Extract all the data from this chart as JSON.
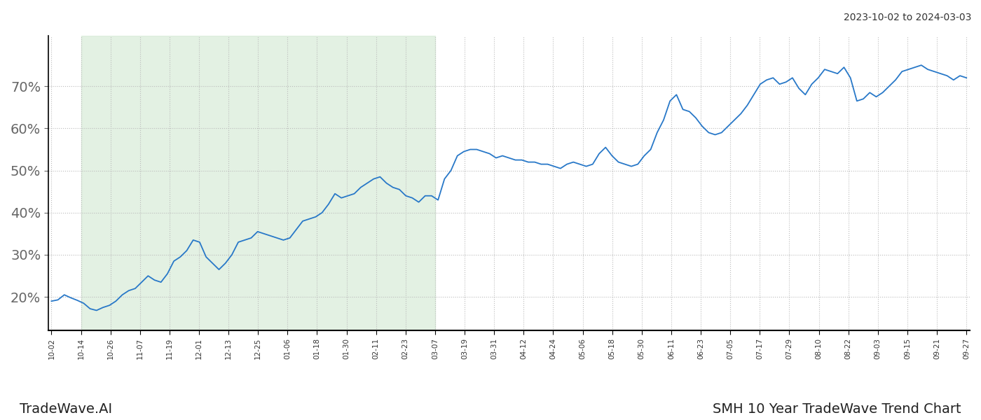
{
  "title_top_right": "2023-10-02 to 2024-03-03",
  "title_bottom_left": "TradeWave.AI",
  "title_bottom_right": "SMH 10 Year TradeWave Trend Chart",
  "line_color": "#2878c8",
  "line_width": 1.3,
  "shaded_region_color": "#d4ead4",
  "shaded_region_alpha": 0.65,
  "background_color": "#ffffff",
  "grid_color": "#bbbbbb",
  "grid_style": ":",
  "ylim": [
    12,
    82
  ],
  "yticks": [
    20,
    30,
    40,
    50,
    60,
    70
  ],
  "x_labels": [
    "10-02",
    "10-14",
    "10-26",
    "11-07",
    "11-19",
    "12-01",
    "12-13",
    "12-25",
    "01-06",
    "01-18",
    "01-30",
    "02-11",
    "02-23",
    "03-07",
    "03-19",
    "03-31",
    "04-12",
    "04-24",
    "05-06",
    "05-18",
    "05-30",
    "06-11",
    "06-23",
    "07-05",
    "07-17",
    "07-29",
    "08-10",
    "08-22",
    "09-03",
    "09-15",
    "09-21",
    "09-27"
  ],
  "shaded_start_label": "10-14",
  "shaded_end_label": "03-07",
  "y_values": [
    19.0,
    19.3,
    20.5,
    19.8,
    19.2,
    18.5,
    17.2,
    16.8,
    17.5,
    18.0,
    19.0,
    20.5,
    21.5,
    22.0,
    23.5,
    25.0,
    24.0,
    23.5,
    25.5,
    28.5,
    29.5,
    31.0,
    33.5,
    33.0,
    29.5,
    28.0,
    26.5,
    28.0,
    30.0,
    33.0,
    33.5,
    34.0,
    35.5,
    35.0,
    34.5,
    34.0,
    33.5,
    34.0,
    36.0,
    38.0,
    38.5,
    39.0,
    40.0,
    42.0,
    44.5,
    43.5,
    44.0,
    44.5,
    46.0,
    47.0,
    48.0,
    48.5,
    47.0,
    46.0,
    45.5,
    44.0,
    43.5,
    42.5,
    44.0,
    44.0,
    43.0,
    48.0,
    50.0,
    53.5,
    54.5,
    55.0,
    55.0,
    54.5,
    54.0,
    53.0,
    53.5,
    53.0,
    52.5,
    52.5,
    52.0,
    52.0,
    51.5,
    51.5,
    51.0,
    50.5,
    51.5,
    52.0,
    51.5,
    51.0,
    51.5,
    54.0,
    55.5,
    53.5,
    52.0,
    51.5,
    51.0,
    51.5,
    53.5,
    55.0,
    59.0,
    62.0,
    66.5,
    68.0,
    64.5,
    64.0,
    62.5,
    60.5,
    59.0,
    58.5,
    59.0,
    60.5,
    62.0,
    63.5,
    65.5,
    68.0,
    70.5,
    71.5,
    72.0,
    70.5,
    71.0,
    72.0,
    69.5,
    68.0,
    70.5,
    72.0,
    74.0,
    73.5,
    73.0,
    74.5,
    72.0,
    66.5,
    67.0,
    68.5,
    67.5,
    68.5,
    70.0,
    71.5,
    73.5,
    74.0,
    74.5,
    75.0,
    74.0,
    73.5,
    73.0,
    72.5,
    71.5,
    72.5,
    72.0
  ]
}
